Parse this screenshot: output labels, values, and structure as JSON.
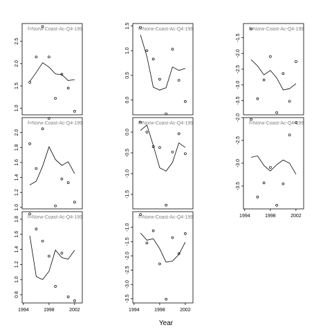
{
  "xlabel": "Year",
  "chart_data": [
    {
      "type": "scatter",
      "title": "f=Norw-Coast-Ac-Q4-1995",
      "xlim": [
        1993.8,
        2003.2
      ],
      "ylim": [
        0.85,
        2.9
      ],
      "yticks": [
        1.0,
        1.5,
        2.0,
        2.5
      ],
      "ytick_labels": [
        "1.0",
        "1.5",
        "2.0",
        "2.5"
      ],
      "show_xticks": false,
      "points": {
        "x": [
          1995,
          1996,
          1997,
          1998,
          1999,
          2000,
          2001,
          2002
        ],
        "y": [
          1.58,
          2.15,
          2.83,
          2.15,
          1.22,
          1.76,
          1.45,
          0.93
        ]
      },
      "line": {
        "x": [
          1995,
          1996,
          1997,
          1998,
          1999,
          2000,
          2001,
          2002
        ],
        "y": [
          1.6,
          1.8,
          2.02,
          1.92,
          1.77,
          1.75,
          1.62,
          1.64
        ]
      }
    },
    {
      "type": "scatter",
      "title": "f=Norw-Coast-Ac-Q4-1995",
      "xlim": [
        1993.8,
        2003.2
      ],
      "ylim": [
        -0.3,
        1.55
      ],
      "yticks": [
        0.0,
        0.5,
        1.0,
        1.5
      ],
      "ytick_labels": [
        "0.0",
        "0.5",
        "1.0",
        "1.5"
      ],
      "show_xticks": false,
      "points": {
        "x": [
          1995,
          1996,
          1997,
          1998,
          1999,
          2000,
          2001,
          2002
        ],
        "y": [
          1.47,
          1.0,
          0.83,
          0.42,
          -0.28,
          1.03,
          0.4,
          -0.03
        ]
      },
      "line": {
        "x": [
          1995,
          1996,
          1997,
          1998,
          1999,
          2000,
          2001,
          2002
        ],
        "y": [
          1.32,
          0.88,
          0.26,
          0.2,
          0.25,
          0.67,
          0.6,
          0.64
        ]
      }
    },
    {
      "type": "scatter",
      "title": "f=Norw-Coast-Ac-Q4-1995",
      "xlim": [
        1993.8,
        2003.2
      ],
      "ylim": [
        -3.95,
        -1.05
      ],
      "yticks": [
        -3.5,
        -3.0,
        -2.5,
        -2.0,
        -1.5
      ],
      "ytick_labels": [
        "-3.5",
        "-3.0",
        "-2.5",
        "-2.0",
        "-1.5"
      ],
      "show_xticks": false,
      "points": {
        "x": [
          1995,
          1996,
          1997,
          1998,
          1999,
          2000,
          2001,
          2002
        ],
        "y": [
          -1.22,
          -3.44,
          -2.84,
          -2.1,
          -3.88,
          -2.64,
          -3.52,
          -2.26
        ]
      },
      "line": {
        "x": [
          1995,
          1996,
          1997,
          1998,
          1999,
          2000,
          2001,
          2002
        ],
        "y": [
          -2.2,
          -2.4,
          -2.68,
          -2.54,
          -2.78,
          -3.16,
          -3.12,
          -2.96
        ]
      }
    },
    {
      "type": "scatter",
      "title": "f=Norw-Coast-Ac-Q4-1995",
      "xlim": [
        1993.8,
        2003.2
      ],
      "ylim": [
        0.98,
        2.2
      ],
      "yticks": [
        1.0,
        1.2,
        1.4,
        1.6,
        1.8,
        2.0
      ],
      "ytick_labels": [
        "1.0",
        "1.2",
        "1.4",
        "1.6",
        "1.8",
        "2.0"
      ],
      "show_xticks": false,
      "points": {
        "x": [
          1995,
          1996,
          1997,
          1998,
          1999,
          2000,
          2001,
          2002
        ],
        "y": [
          1.85,
          1.52,
          2.05,
          2.19,
          1.02,
          1.38,
          1.33,
          1.07
        ]
      },
      "line": {
        "x": [
          1995,
          1996,
          1997,
          1998,
          1999,
          2000,
          2001,
          2002
        ],
        "y": [
          1.3,
          1.35,
          1.55,
          1.81,
          1.64,
          1.56,
          1.61,
          1.45
        ]
      }
    },
    {
      "type": "scatter",
      "title": "f=Norw-Coast-Ac-Q4-1995",
      "xlim": [
        1993.8,
        2003.2
      ],
      "ylim": [
        -1.85,
        0.35
      ],
      "yticks": [
        -1.5,
        -1.0,
        -0.5,
        0.0
      ],
      "ytick_labels": [
        "-1.5",
        "-1.0",
        "-0.5",
        "0.0"
      ],
      "show_xticks": false,
      "points": {
        "x": [
          1995,
          1996,
          1997,
          1998,
          1999,
          2000,
          2001,
          2002
        ],
        "y": [
          0.24,
          0.0,
          -0.35,
          -0.37,
          -1.76,
          -0.48,
          -0.04,
          -0.52
        ]
      },
      "line": {
        "x": [
          1995,
          1996,
          1997,
          1998,
          1999,
          2000,
          2001,
          2002
        ],
        "y": [
          0.04,
          0.17,
          -0.32,
          -0.86,
          -0.94,
          -0.73,
          -0.26,
          -0.37
        ]
      }
    },
    {
      "type": "scatter",
      "title": "f=Norw-Coast-Ac-Q4-1995",
      "xlim": [
        1993.8,
        2003.2
      ],
      "ylim": [
        -4.0,
        -2.0
      ],
      "yticks": [
        -3.5,
        -3.0,
        -2.5,
        -2.0
      ],
      "ytick_labels": [
        "-3.5",
        "-3.0",
        "-2.5",
        "-2.0"
      ],
      "show_xticks": true,
      "xticks": [
        1994,
        1998,
        2002
      ],
      "xtick_labels": [
        "1994",
        "1998",
        "2002"
      ],
      "points": {
        "x": [
          1995,
          1996,
          1997,
          1998,
          1999,
          2000,
          2001,
          2002
        ],
        "y": [
          -2.04,
          -3.74,
          -3.43,
          -3.09,
          -3.92,
          -3.45,
          -2.38,
          -2.11
        ]
      },
      "line": {
        "x": [
          1995,
          1996,
          1997,
          1998,
          1999,
          2000,
          2001,
          2002
        ],
        "y": [
          -2.87,
          -2.84,
          -3.05,
          -3.17,
          -3.03,
          -2.93,
          -3.0,
          -3.24
        ]
      }
    },
    {
      "type": "scatter",
      "title": "f=Norw-Coast-Ac-Q4-1995",
      "xlim": [
        1993.8,
        2003.2
      ],
      "ylim": [
        0.69,
        1.9
      ],
      "yticks": [
        0.8,
        1.0,
        1.2,
        1.4,
        1.6,
        1.8
      ],
      "ytick_labels": [
        "0.8",
        "1.0",
        "1.2",
        "1.4",
        "1.6",
        "1.8"
      ],
      "show_xticks": true,
      "xticks": [
        1994,
        1998,
        2002
      ],
      "xtick_labels": [
        "1994",
        "1998",
        "2002"
      ],
      "points": {
        "x": [
          1995,
          1996,
          1997,
          1998,
          1999,
          2000,
          2001,
          2002
        ],
        "y": [
          1.87,
          1.67,
          1.51,
          1.31,
          0.91,
          1.35,
          0.77,
          0.72
        ]
      },
      "line": {
        "x": [
          1995,
          1996,
          1997,
          1998,
          1999,
          2000,
          2001,
          2002
        ],
        "y": [
          1.58,
          1.04,
          1.0,
          1.11,
          1.39,
          1.29,
          1.27,
          1.39
        ]
      }
    },
    {
      "type": "scatter",
      "title": "f=Norw-Coast-Ac-Q4-1995",
      "xlim": [
        1993.8,
        2003.2
      ],
      "ylim": [
        -3.65,
        -0.45
      ],
      "yticks": [
        -3.5,
        -3.0,
        -2.5,
        -2.0,
        -1.5,
        -1.0
      ],
      "ytick_labels": [
        "-3.5",
        "-3.0",
        "-2.5",
        "-2.0",
        "-1.5",
        "-1.0"
      ],
      "show_xticks": true,
      "xticks": [
        1994,
        1998,
        2002
      ],
      "xtick_labels": [
        "1994",
        "1998",
        "2002"
      ],
      "points": {
        "x": [
          1995,
          1996,
          1997,
          1998,
          1999,
          2000,
          2001,
          2002
        ],
        "y": [
          -0.55,
          -1.55,
          -1.12,
          -2.28,
          -3.52,
          -1.36,
          -1.92,
          -1.22
        ]
      },
      "line": {
        "x": [
          1995,
          1996,
          1997,
          1998,
          1999,
          2000,
          2001,
          2002
        ],
        "y": [
          -1.2,
          -1.45,
          -1.4,
          -1.75,
          -2.22,
          -2.18,
          -1.95,
          -1.52
        ]
      }
    }
  ]
}
